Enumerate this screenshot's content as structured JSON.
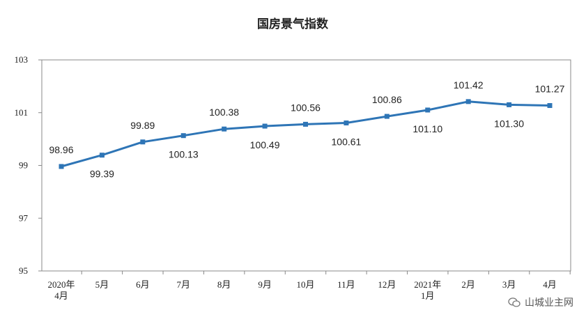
{
  "chart_data": {
    "type": "line",
    "title": "国房景气指数",
    "categories": [
      [
        "2020年",
        "4月"
      ],
      [
        "5月"
      ],
      [
        "6月"
      ],
      [
        "7月"
      ],
      [
        "8月"
      ],
      [
        "9月"
      ],
      [
        "10月"
      ],
      [
        "11月"
      ],
      [
        "12月"
      ],
      [
        "2021年",
        "1月"
      ],
      [
        "2月"
      ],
      [
        "3月"
      ],
      [
        "4月"
      ]
    ],
    "series": [
      {
        "values": [
          98.96,
          99.39,
          99.89,
          100.13,
          100.38,
          100.49,
          100.56,
          100.61,
          100.86,
          101.1,
          101.42,
          101.3,
          101.27
        ],
        "labels": [
          "98.96",
          "99.39",
          "99.89",
          "100.13",
          "100.38",
          "100.49",
          "100.56",
          "100.61",
          "100.86",
          "101.10",
          "101.42",
          "101.30",
          "101.27"
        ],
        "label_side": [
          "above",
          "below",
          "above",
          "below",
          "above",
          "below",
          "above",
          "below",
          "above",
          "below",
          "above",
          "below",
          "above"
        ]
      }
    ],
    "yticks": [
      "95",
      "97",
      "99",
      "101",
      "103"
    ],
    "ylim": [
      95,
      103
    ],
    "grid": false,
    "colors": {
      "line": "#2e75b6",
      "marker": "#2e75b6",
      "axis": "#888888"
    }
  },
  "watermark": {
    "text": "山城业主网",
    "icon": "wechat-icon"
  }
}
